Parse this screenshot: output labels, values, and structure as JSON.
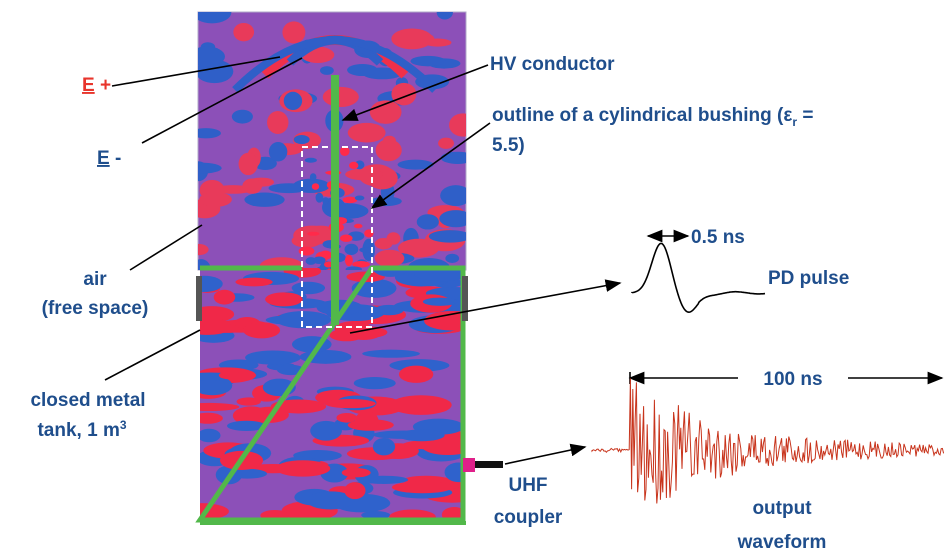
{
  "labels": {
    "e_plus": {
      "letter": "E",
      "sign": "+"
    },
    "e_minus": {
      "letter": "E",
      "sign": "-"
    },
    "hv_conductor": "HV conductor",
    "bushing": {
      "line1": "outline of a cylindrical bushing (ε",
      "sub": "r",
      "line1_end": " =",
      "line2": "5.5)"
    },
    "air": {
      "line1": "air",
      "line2": "(free space)"
    },
    "tank": {
      "line1": "closed metal",
      "line2": "tank, 1 m",
      "sup": "3"
    },
    "pulse_width": "0.5 ns",
    "pd_pulse": "PD pulse",
    "duration": "100 ns",
    "coupler": {
      "line1": "UHF",
      "line2": "coupler"
    },
    "output": {
      "line1": "output",
      "line2": "waveform"
    }
  }
}
